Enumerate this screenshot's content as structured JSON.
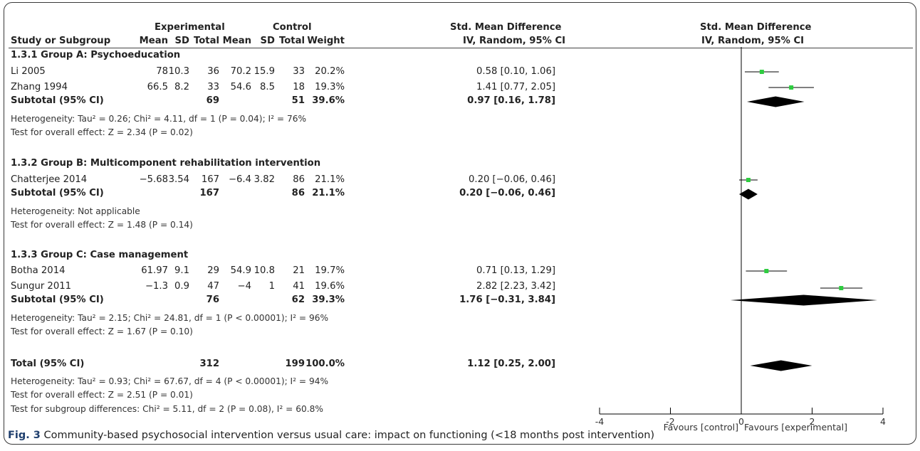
{
  "header": {
    "experimental": "Experimental",
    "control": "Control",
    "smd_table": "Std. Mean Difference",
    "smd_plot": "Std. Mean Difference",
    "study_or_subgroup": "Study or Subgroup",
    "mean": "Mean",
    "sd": "SD",
    "total": "Total",
    "weight": "Weight",
    "method_table": "IV, Random, 95% CI",
    "method_plot": "IV, Random, 95% CI"
  },
  "groups": [
    {
      "title": "1.3.1 Group A: Psychoeducation",
      "studies": [
        {
          "name": "Li 2005",
          "e_mean": "78",
          "e_sd": "10.3",
          "e_total": "36",
          "c_mean": "70.2",
          "c_sd": "15.9",
          "c_total": "33",
          "weight": "20.2%",
          "ci": "0.58 [0.10, 1.06]"
        },
        {
          "name": "Zhang 1994",
          "e_mean": "66.5",
          "e_sd": "8.2",
          "e_total": "33",
          "c_mean": "54.6",
          "c_sd": "8.5",
          "c_total": "18",
          "weight": "19.3%",
          "ci": "1.41 [0.77, 2.05]"
        }
      ],
      "subtotal": {
        "label": "Subtotal (95% CI)",
        "e_total": "69",
        "c_total": "51",
        "weight": "39.6%",
        "ci": "0.97 [0.16, 1.78]"
      },
      "heterogeneity": "Heterogeneity: Tau² = 0.26; Chi² = 4.11, df = 1 (P = 0.04); I² = 76%",
      "overall": "Test for overall effect: Z = 2.34 (P = 0.02)"
    },
    {
      "title": "1.3.2 Group B: Multicomponent rehabilitation intervention",
      "studies": [
        {
          "name": "Chatterjee 2014",
          "e_mean": "−5.68",
          "e_sd": "3.54",
          "e_total": "167",
          "c_mean": "−6.4",
          "c_sd": "3.82",
          "c_total": "86",
          "weight": "21.1%",
          "ci": "0.20 [−0.06, 0.46]"
        }
      ],
      "subtotal": {
        "label": "Subtotal (95% CI)",
        "e_total": "167",
        "c_total": "86",
        "weight": "21.1%",
        "ci": "0.20 [−0.06, 0.46]"
      },
      "heterogeneity": "Heterogeneity: Not applicable",
      "overall": "Test for overall effect: Z = 1.48 (P = 0.14)"
    },
    {
      "title": "1.3.3 Group C: Case management",
      "studies": [
        {
          "name": "Botha 2014",
          "e_mean": "61.97",
          "e_sd": "9.1",
          "e_total": "29",
          "c_mean": "54.9",
          "c_sd": "10.8",
          "c_total": "21",
          "weight": "19.7%",
          "ci": "0.71 [0.13, 1.29]"
        },
        {
          "name": "Sungur 2011",
          "e_mean": "−1.3",
          "e_sd": "0.9",
          "e_total": "47",
          "c_mean": "−4",
          "c_sd": "1",
          "c_total": "41",
          "weight": "19.6%",
          "ci": "2.82 [2.23, 3.42]"
        }
      ],
      "subtotal": {
        "label": "Subtotal (95% CI)",
        "e_total": "76",
        "c_total": "62",
        "weight": "39.3%",
        "ci": "1.76 [−0.31, 3.84]"
      },
      "heterogeneity": "Heterogeneity: Tau² = 2.15; Chi² = 24.81, df = 1 (P < 0.00001); I² = 96%",
      "overall": "Test for overall effect: Z = 1.67 (P = 0.10)"
    }
  ],
  "total": {
    "label": "Total (95% CI)",
    "e_total": "312",
    "c_total": "199",
    "weight": "100.0%",
    "ci": "1.12 [0.25, 2.00]"
  },
  "total_heterogeneity": "Heterogeneity: Tau² = 0.93; Chi² = 67.67, df = 4 (P < 0.00001); I² = 94%",
  "total_overall": "Test for overall effect: Z = 2.51 (P = 0.01)",
  "subgroup_differences": "Test for subgroup differences: Chi² = 5.11, df = 2 (P = 0.08), I² = 60.8%",
  "axis": {
    "favours_left": "Favours [control]",
    "favours_right": "Favours [experimental]"
  },
  "caption": {
    "fig_label": "Fig. 3",
    "text": " Community-based psychosocial intervention versus usual care: impact on functioning (<18 months post intervention)"
  },
  "colors": {
    "study_marker": "#2ecc40",
    "diamond": "#000000",
    "line": "#000000"
  },
  "chart_data": {
    "type": "forest",
    "xlim": [
      -4,
      4
    ],
    "xticks": [
      -4,
      -2,
      0,
      2,
      4
    ],
    "tick_labels": [
      "-4",
      "-2",
      "0",
      "2",
      "4"
    ],
    "studies": [
      {
        "name": "Li 2005",
        "est": 0.58,
        "lo": 0.1,
        "hi": 1.06,
        "weight": 20.2
      },
      {
        "name": "Zhang 1994",
        "est": 1.41,
        "lo": 0.77,
        "hi": 2.05,
        "weight": 19.3
      },
      {
        "name": "Chatterjee 2014",
        "est": 0.2,
        "lo": -0.06,
        "hi": 0.46,
        "weight": 21.1
      },
      {
        "name": "Botha 2014",
        "est": 0.71,
        "lo": 0.13,
        "hi": 1.29,
        "weight": 19.7
      },
      {
        "name": "Sungur 2011",
        "est": 2.82,
        "lo": 2.23,
        "hi": 3.42,
        "weight": 19.6
      }
    ],
    "subtotals": [
      {
        "name": "1.3.1 Group A: Psychoeducation",
        "est": 0.97,
        "lo": 0.16,
        "hi": 1.78
      },
      {
        "name": "1.3.2 Group B: Multicomponent rehabilitation intervention",
        "est": 0.2,
        "lo": -0.06,
        "hi": 0.46
      },
      {
        "name": "1.3.3 Group C: Case management",
        "est": 1.76,
        "lo": -0.31,
        "hi": 3.84
      }
    ],
    "total": {
      "name": "Total (95% CI)",
      "est": 1.12,
      "lo": 0.25,
      "hi": 2.0
    }
  }
}
